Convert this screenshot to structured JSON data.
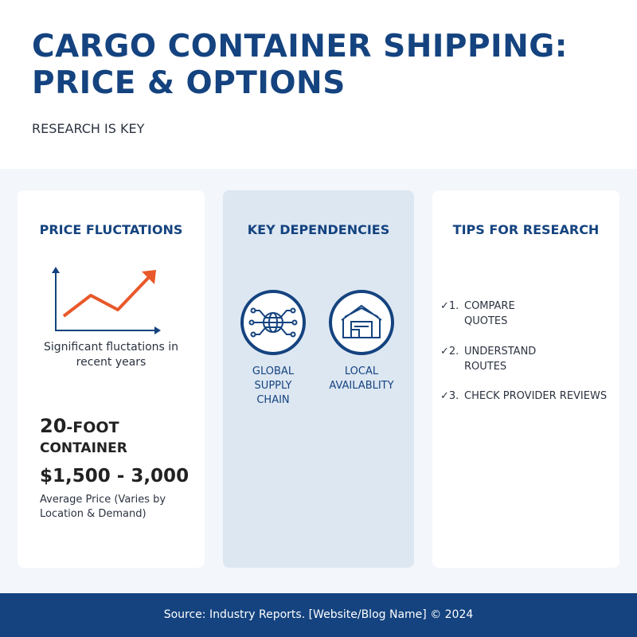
{
  "header": {
    "title_line1": "CARGO CONTAINER SHIPPING:",
    "title_line2": "PRICE & OPTIONS",
    "subtitle": "RESEARCH IS KEY"
  },
  "colors": {
    "primary": "#14437f",
    "accent": "#e8582a"
  },
  "price": {
    "heading": "PRICE FLUCTATIONS",
    "chart_icon": "trend-up-chart-icon",
    "caption_line1": "Significant fluctations in",
    "caption_line2": "recent years",
    "size_num": "20",
    "size_word": "-FOOT",
    "size_line2": "CONTAINER",
    "range": "$1,500 - 3,000",
    "note_line1": "Average Price (Varies by",
    "note_line2": "Location & Demand)"
  },
  "dependencies": {
    "heading": "KEY DEPENDENCIES",
    "items": [
      {
        "icon": "globe-network-icon",
        "line1": "GLOBAL",
        "line2": "SUPPLY",
        "line3": "CHAIN"
      },
      {
        "icon": "warehouse-icon",
        "line1": "LOCAL",
        "line2": "AVAILABLITY"
      }
    ]
  },
  "tips": {
    "heading": "TIPS FOR RESEARCH",
    "items": [
      {
        "num": "1.",
        "line1": "COMPARE",
        "line2": "QUOTES"
      },
      {
        "num": "2.",
        "line1": "UNDERSTAND",
        "line2": "ROUTES"
      },
      {
        "num": "3.",
        "line1": "CHECK PROVIDER REVIEWS",
        "line2": ""
      }
    ]
  },
  "footer": {
    "text": "Source: Industry Reports. [Website/Blog Name] © 2024"
  }
}
